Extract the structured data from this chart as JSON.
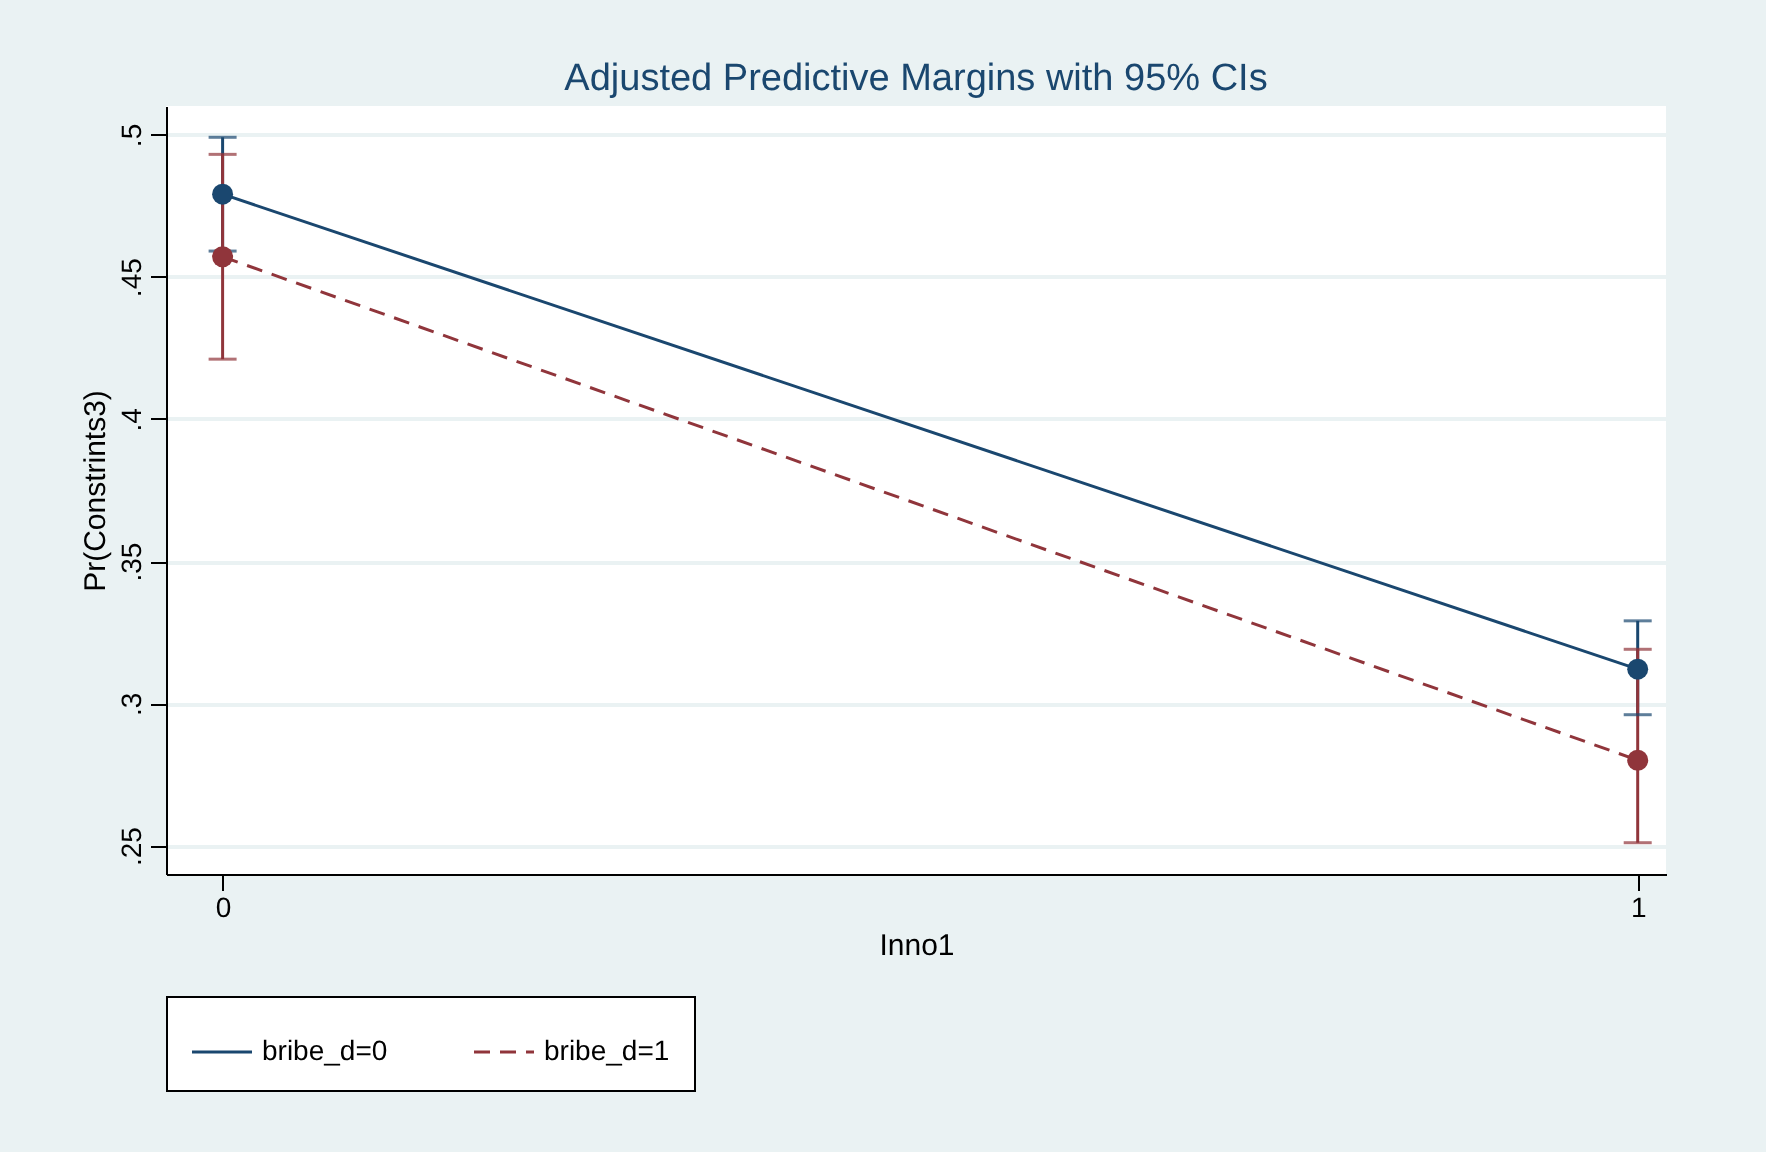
{
  "chart_data": {
    "type": "line",
    "title": "Adjusted Predictive Margins with 95% CIs",
    "xlabel": "Inno1",
    "ylabel": "Pr(Constrints3)",
    "x": [
      0,
      1
    ],
    "series": [
      {
        "name": "bribe_d=0",
        "color": "#1a476f",
        "values": [
          0.479,
          0.312
        ],
        "errors": [
          [
            0.459,
            0.499
          ],
          [
            0.296,
            0.329
          ]
        ],
        "line_style": "solid"
      },
      {
        "name": "bribe_d=1",
        "color": "#90353b",
        "values": [
          0.457,
          0.28
        ],
        "errors": [
          [
            0.421,
            0.493
          ],
          [
            0.251,
            0.319
          ]
        ],
        "line_style": "dashed"
      }
    ],
    "xlim": [
      -0.04,
      1.02
    ],
    "xticks": [
      0,
      1
    ],
    "ylim": [
      0.24,
      0.51
    ],
    "yticks": [
      {
        "value": 0.25,
        "label": ".25"
      },
      {
        "value": 0.3,
        "label": ".3"
      },
      {
        "value": 0.35,
        "label": ".35"
      },
      {
        "value": 0.4,
        "label": ".4"
      },
      {
        "value": 0.45,
        "label": ".45"
      },
      {
        "value": 0.5,
        "label": ".5"
      }
    ],
    "grid": "y",
    "legend": "bottom",
    "marker": "circle"
  }
}
